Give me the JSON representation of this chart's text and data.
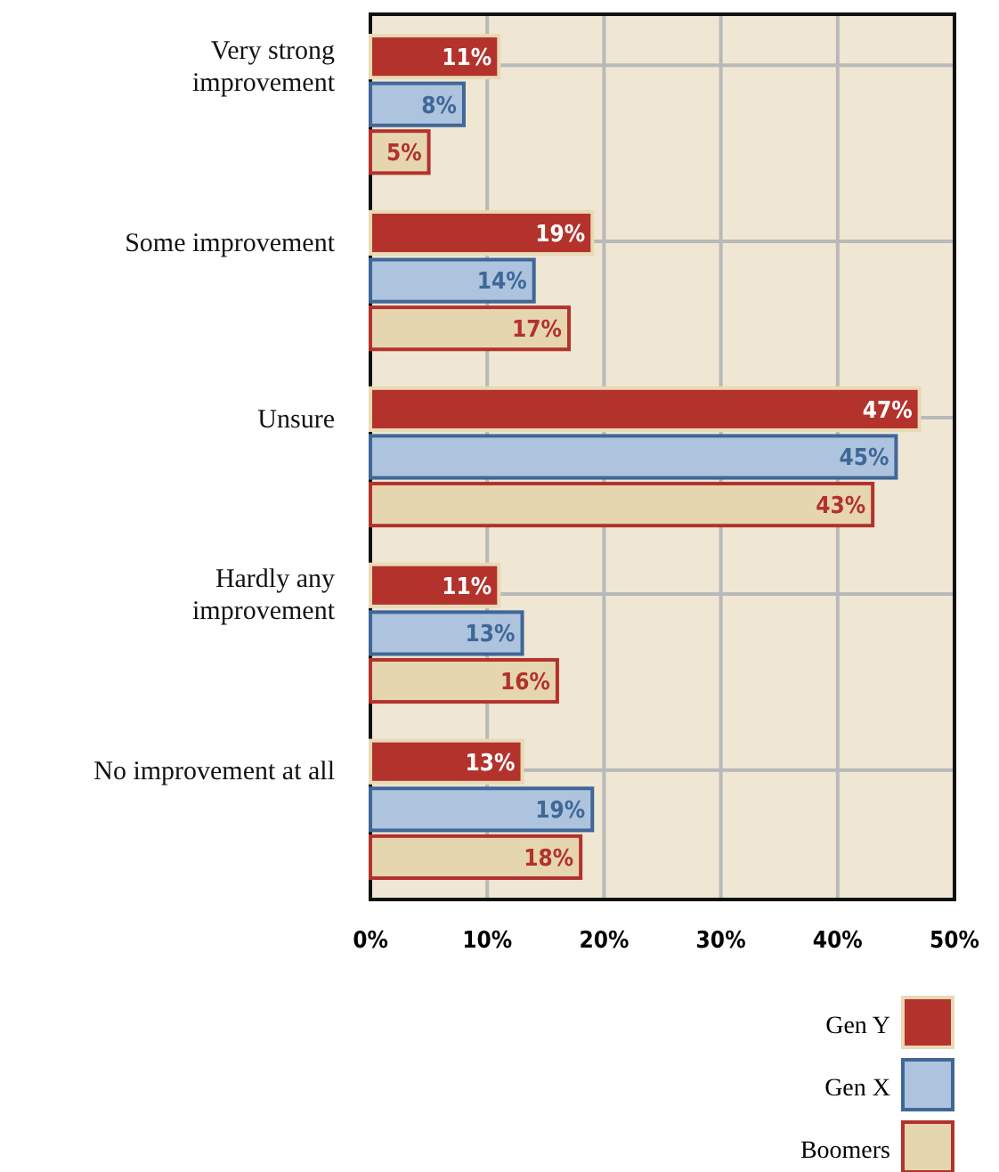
{
  "chart_data": {
    "type": "bar",
    "orientation": "horizontal",
    "categories": [
      "Very strong\nimprovement",
      "Some improvement",
      "Unsure",
      "Hardly any\nimprovement",
      "No improvement at all"
    ],
    "series": [
      {
        "name": "Gen Y",
        "color": "#b3322c",
        "values": [
          11,
          19,
          47,
          11,
          13
        ],
        "value_labels": [
          "11%",
          "19%",
          "47%",
          "11%",
          "13%"
        ]
      },
      {
        "name": "Gen X",
        "color": "#adc3de",
        "values": [
          8,
          14,
          45,
          13,
          19
        ],
        "value_labels": [
          "8%",
          "14%",
          "45%",
          "13%",
          "19%"
        ]
      },
      {
        "name": "Boomers",
        "color": "#e6d6b0",
        "values": [
          5,
          17,
          43,
          16,
          18
        ],
        "value_labels": [
          "5%",
          "17%",
          "43%",
          "16%",
          "18%"
        ]
      }
    ],
    "xlim": [
      0,
      50
    ],
    "xticks": [
      {
        "value": 0,
        "label": "0%"
      },
      {
        "value": 10,
        "label": "10%"
      },
      {
        "value": 20,
        "label": "20%"
      },
      {
        "value": 30,
        "label": "30%"
      },
      {
        "value": 40,
        "label": "40%"
      },
      {
        "value": 50,
        "label": "50%"
      }
    ],
    "grid": true,
    "legend": "bottom right"
  }
}
